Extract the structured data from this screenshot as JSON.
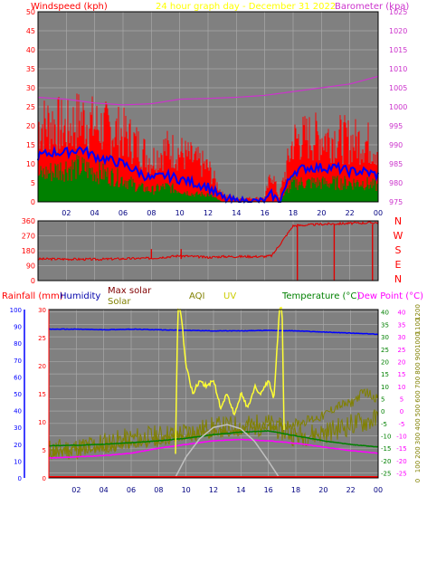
{
  "colors": {
    "plot_bg": "#808080",
    "grid": "#a8a8a8",
    "frame": "#000000",
    "wind_gust": "#ff0000",
    "wind_avg": "#0000ff",
    "wind_low": "#008000",
    "barometer": "#cc33cc",
    "direction": "#e00000",
    "humidity": "#0000ff",
    "max_solar": "#c0c0c0",
    "solar": "#808000",
    "aqi": "#808000",
    "uv": "#ffff33",
    "temperature": "#008000",
    "dew_point": "#ff00ff",
    "rain": "#ff0000",
    "rain_axis": "#0000ff",
    "solar_axis": "#808000"
  },
  "top_header": {
    "left": "Windspeed (kph)",
    "center": "24 hour graph day - December 31 2022",
    "right": "Barometer (kpa)"
  },
  "bottom_header": {
    "rainfall": "Rainfall (mm)",
    "humidity": "Humidity",
    "max_solar": "Max solar",
    "solar": "Solar",
    "aqi": "AQI",
    "uv": "UV",
    "temperature": "Temperature (°C)",
    "dew_point": "Dew Point (°C)"
  },
  "chart_data": [
    {
      "type": "line",
      "x_ticks": [
        "02",
        "04",
        "06",
        "08",
        "10",
        "12",
        "14",
        "16",
        "18",
        "20",
        "22",
        "00"
      ],
      "left_axis_ticks": [
        "0",
        "5",
        "10",
        "15",
        "20",
        "25",
        "30",
        "35",
        "40",
        "45",
        "50"
      ],
      "right_axis_ticks": [
        "975",
        "980",
        "985",
        "990",
        "995",
        "1000",
        "1005",
        "1010",
        "1015",
        "1020",
        "1025"
      ],
      "ylim_left": [
        0,
        50
      ],
      "ylim_right": [
        975,
        1025
      ],
      "x_range_hours": [
        0,
        24
      ],
      "series": [
        {
          "role": "gust",
          "x": [
            0,
            1,
            2,
            3,
            4,
            5,
            6,
            7,
            8,
            9,
            10,
            11,
            12,
            13,
            14,
            15,
            16,
            16.5,
            17,
            18,
            19,
            20,
            21,
            22,
            23,
            24
          ],
          "values": [
            20,
            21,
            19,
            22,
            20,
            19,
            18,
            15,
            11,
            14,
            13,
            11,
            9,
            2,
            1,
            1,
            1,
            8,
            1,
            16,
            17,
            17,
            17,
            16,
            16,
            14
          ]
        },
        {
          "role": "average",
          "x": [
            0,
            1,
            2,
            3,
            4,
            5,
            6,
            7,
            8,
            9,
            10,
            11,
            12,
            13,
            14,
            15,
            16,
            16.5,
            17,
            18,
            19,
            20,
            21,
            22,
            23,
            24
          ],
          "values": [
            12,
            13,
            13,
            14,
            12,
            11,
            10,
            8,
            6,
            7,
            6,
            5,
            4,
            1,
            0,
            0,
            0,
            2,
            0,
            8,
            9,
            9,
            9,
            8,
            8,
            7
          ]
        },
        {
          "role": "low",
          "x": [
            0,
            1,
            2,
            3,
            4,
            5,
            6,
            7,
            8,
            9,
            10,
            11,
            12,
            13,
            14,
            15,
            16,
            16.5,
            17,
            18,
            19,
            20,
            21,
            22,
            23,
            24
          ],
          "values": [
            7,
            8,
            9,
            9,
            8,
            7,
            6,
            4,
            3,
            4,
            3,
            2,
            2,
            0,
            0,
            0,
            0,
            0,
            0,
            5,
            5,
            5,
            5,
            5,
            5,
            4
          ]
        },
        {
          "role": "barometer",
          "x": [
            0,
            2,
            4,
            6,
            8,
            10,
            12,
            14,
            16,
            18,
            20,
            22,
            24
          ],
          "values": [
            1002.5,
            1002,
            1001,
            1000.5,
            1000.8,
            1002,
            1002.2,
            1002.5,
            1003,
            1004,
            1005,
            1006,
            1008
          ]
        }
      ]
    },
    {
      "type": "line",
      "direction_labels": [
        "N",
        "W",
        "S",
        "E",
        "N"
      ],
      "left_axis_ticks": [
        "0",
        "90",
        "180",
        "270",
        "360"
      ],
      "ylim": [
        0,
        360
      ],
      "series": [
        {
          "role": "direction",
          "x": [
            0,
            2,
            4,
            6,
            8,
            10,
            12,
            13,
            14,
            15,
            16,
            16.5,
            17,
            18,
            20,
            22,
            24
          ],
          "values": [
            130,
            130,
            128,
            132,
            135,
            150,
            140,
            145,
            145,
            145,
            145,
            150,
            210,
            330,
            340,
            345,
            350
          ]
        }
      ]
    },
    {
      "type": "line",
      "x_ticks": [
        "02",
        "04",
        "06",
        "08",
        "10",
        "12",
        "14",
        "16",
        "18",
        "20",
        "22",
        "00"
      ],
      "rain_axis_ticks": [
        "0",
        "10",
        "20",
        "30",
        "40",
        "50",
        "60",
        "70",
        "80",
        "90",
        "100"
      ],
      "humidity_axis_ticks": [
        "0",
        "5",
        "10",
        "15",
        "20",
        "25",
        "30"
      ],
      "temp_axis_ticks": [
        "-25",
        "-20",
        "-15",
        "-10",
        "-5",
        "0",
        "5",
        "10",
        "15",
        "20",
        "25",
        "30",
        "35",
        "40"
      ],
      "dew_axis_ticks": [
        "-25",
        "-20",
        "-15",
        "-10",
        "-5",
        "0",
        "5",
        "10",
        "15",
        "20",
        "25",
        "30",
        "35",
        "40"
      ],
      "solar_axis_ticks": [
        "0",
        "100",
        "200",
        "300",
        "400",
        "500",
        "600",
        "700",
        "800",
        "900",
        "1000",
        "1100",
        "1200"
      ],
      "ylim_temp": [
        -27,
        41
      ],
      "ylim_solar": [
        0,
        1200
      ],
      "ylim_humidity": [
        0,
        30
      ],
      "series": [
        {
          "role": "humidity",
          "x": [
            0,
            2,
            4,
            6,
            8,
            10,
            12,
            14,
            16,
            18,
            20,
            22,
            24
          ],
          "values": [
            26.5,
            26.5,
            26.4,
            26.5,
            26.4,
            26.3,
            26.2,
            26.2,
            26.3,
            26.2,
            26,
            25.8,
            25.6
          ]
        },
        {
          "role": "temperature",
          "x": [
            0,
            2,
            4,
            6,
            8,
            10,
            12,
            14,
            16,
            18,
            20,
            22,
            24
          ],
          "values": [
            -14,
            -13.8,
            -13.4,
            -12.8,
            -12,
            -11,
            -9.5,
            -8.5,
            -8,
            -10,
            -12,
            -13.5,
            -14.5
          ]
        },
        {
          "role": "dew_point",
          "x": [
            0,
            2,
            4,
            6,
            8,
            10,
            12,
            14,
            16,
            18,
            20,
            22,
            24
          ],
          "values": [
            -19,
            -18.5,
            -18,
            -17,
            -15,
            -13.5,
            -12,
            -11.5,
            -12,
            -13,
            -14.5,
            -16,
            -17
          ]
        },
        {
          "role": "max_solar",
          "x": [
            9.2,
            10,
            11,
            12,
            13,
            14,
            15,
            16,
            16.8
          ],
          "values": [
            0,
            150,
            280,
            360,
            380,
            350,
            260,
            120,
            0
          ]
        },
        {
          "role": "solar",
          "x": [
            0,
            2,
            4,
            6,
            8,
            10,
            12,
            14,
            16,
            18,
            20,
            22,
            24
          ],
          "values": [
            200,
            210,
            250,
            280,
            300,
            320,
            360,
            370,
            380,
            300,
            320,
            380,
            420
          ]
        },
        {
          "role": "aqi",
          "x": [
            0,
            2,
            4,
            6,
            8,
            9,
            10,
            12,
            14,
            16,
            18,
            20,
            21,
            22,
            23,
            24
          ],
          "values": [
            -17,
            -16,
            -15,
            -13,
            -12,
            -11,
            -10,
            -9,
            -8,
            -6,
            -5,
            -2,
            2,
            3,
            8,
            5
          ]
        },
        {
          "role": "uv",
          "x": [
            9.2,
            9.4,
            9.6,
            10,
            10.5,
            11,
            11.5,
            12,
            12.5,
            13,
            13.5,
            14,
            14.5,
            15,
            15.5,
            16,
            16.4,
            16.8,
            17,
            17.2
          ],
          "values": [
            0,
            1200,
            1200,
            800,
            600,
            700,
            650,
            700,
            500,
            600,
            450,
            600,
            500,
            650,
            600,
            700,
            550,
            1200,
            1200,
            0
          ]
        },
        {
          "role": "rain",
          "x": [
            0,
            24
          ],
          "values": [
            0,
            0
          ]
        }
      ]
    }
  ]
}
